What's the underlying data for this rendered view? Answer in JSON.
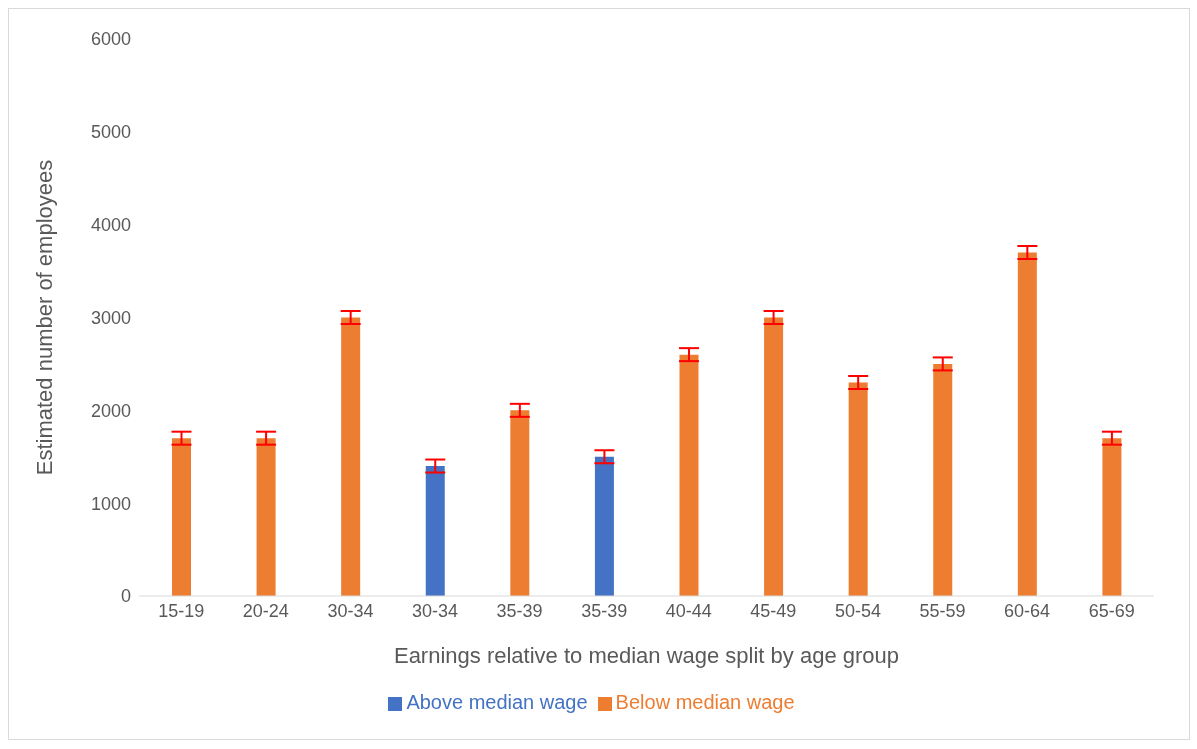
{
  "chart_data": {
    "type": "bar",
    "xlabel": "Earnings relative to median wage split by age group",
    "ylabel": "Estimated number of employees",
    "categories": [
      "15-19",
      "20-24",
      "30-34",
      "30-34",
      "35-39",
      "35-39",
      "40-44",
      "45-49",
      "50-54",
      "55-59",
      "60-64",
      "65-69"
    ],
    "series": [
      {
        "name": "Above median wage",
        "color": "#4472c4",
        "values": [
          null,
          null,
          null,
          1400,
          null,
          1500,
          null,
          null,
          null,
          null,
          null,
          null
        ],
        "errors": [
          null,
          null,
          null,
          70,
          null,
          70,
          null,
          null,
          null,
          null,
          null,
          null
        ]
      },
      {
        "name": "Below median wage",
        "color": "#ed7d31",
        "values": [
          1700,
          1700,
          3000,
          null,
          2000,
          null,
          2600,
          3000,
          2300,
          2500,
          3700,
          1700
        ],
        "errors": [
          70,
          70,
          70,
          null,
          70,
          null,
          70,
          70,
          70,
          70,
          70,
          70
        ]
      }
    ],
    "ylim": [
      0,
      6000
    ],
    "yticks": [
      0,
      1000,
      2000,
      3000,
      4000,
      5000,
      6000
    ],
    "grid": false,
    "legend": "bottom"
  }
}
